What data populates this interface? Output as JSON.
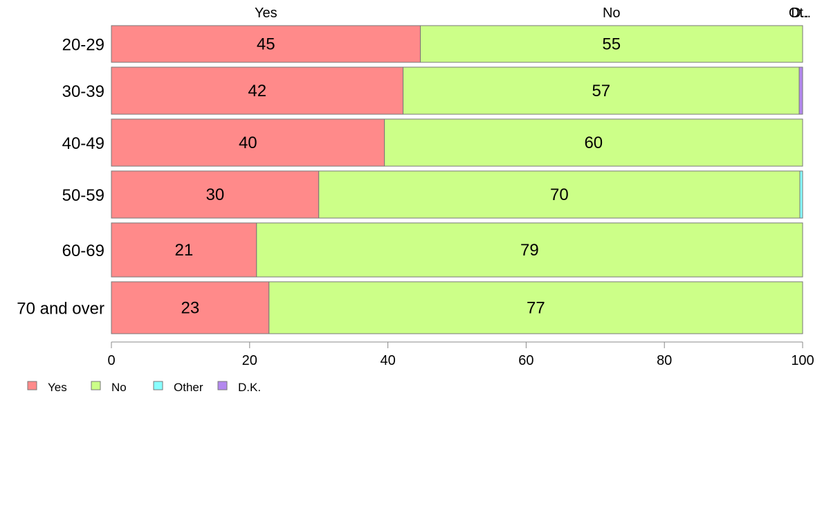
{
  "chart_data": {
    "type": "bar",
    "orientation": "horizontal",
    "stacked": true,
    "categories": [
      "20-29",
      "30-39",
      "40-49",
      "50-59",
      "60-69",
      "70 and over"
    ],
    "series": [
      {
        "name": "Yes",
        "color": "#ff8a8a",
        "values": [
          44.7,
          42.2,
          39.5,
          30.0,
          21.0,
          22.8
        ]
      },
      {
        "name": "No",
        "color": "#ccff88",
        "values": [
          55.3,
          57.3,
          60.5,
          69.6,
          79.0,
          77.2
        ]
      },
      {
        "name": "Other",
        "color": "#88ffff",
        "values": [
          0,
          0,
          0,
          0.4,
          0,
          0
        ]
      },
      {
        "name": "D.K.",
        "color": "#b388ee",
        "values": [
          0,
          0.5,
          0,
          0,
          0,
          0
        ]
      }
    ],
    "data_labels": [
      [
        "45",
        "55"
      ],
      [
        "42",
        "57"
      ],
      [
        "40",
        "60"
      ],
      [
        "30",
        "70"
      ],
      [
        "21",
        "79"
      ],
      [
        "23",
        "77"
      ]
    ],
    "top_labels": [
      {
        "text": "Yes",
        "value": 22.35
      },
      {
        "text": "No",
        "value": 72.35
      },
      {
        "text": "Ot..",
        "value": 99.6
      },
      {
        "text": "D..",
        "value": 99.6
      }
    ],
    "x_ticks": [
      "0",
      "20",
      "40",
      "60",
      "80",
      "100"
    ],
    "xlim": [
      0,
      100
    ],
    "legend": {
      "position": "bottom-left",
      "items": [
        "Yes",
        "No",
        "Other",
        "D.K."
      ]
    },
    "title": "",
    "xlabel": "",
    "ylabel": ""
  }
}
